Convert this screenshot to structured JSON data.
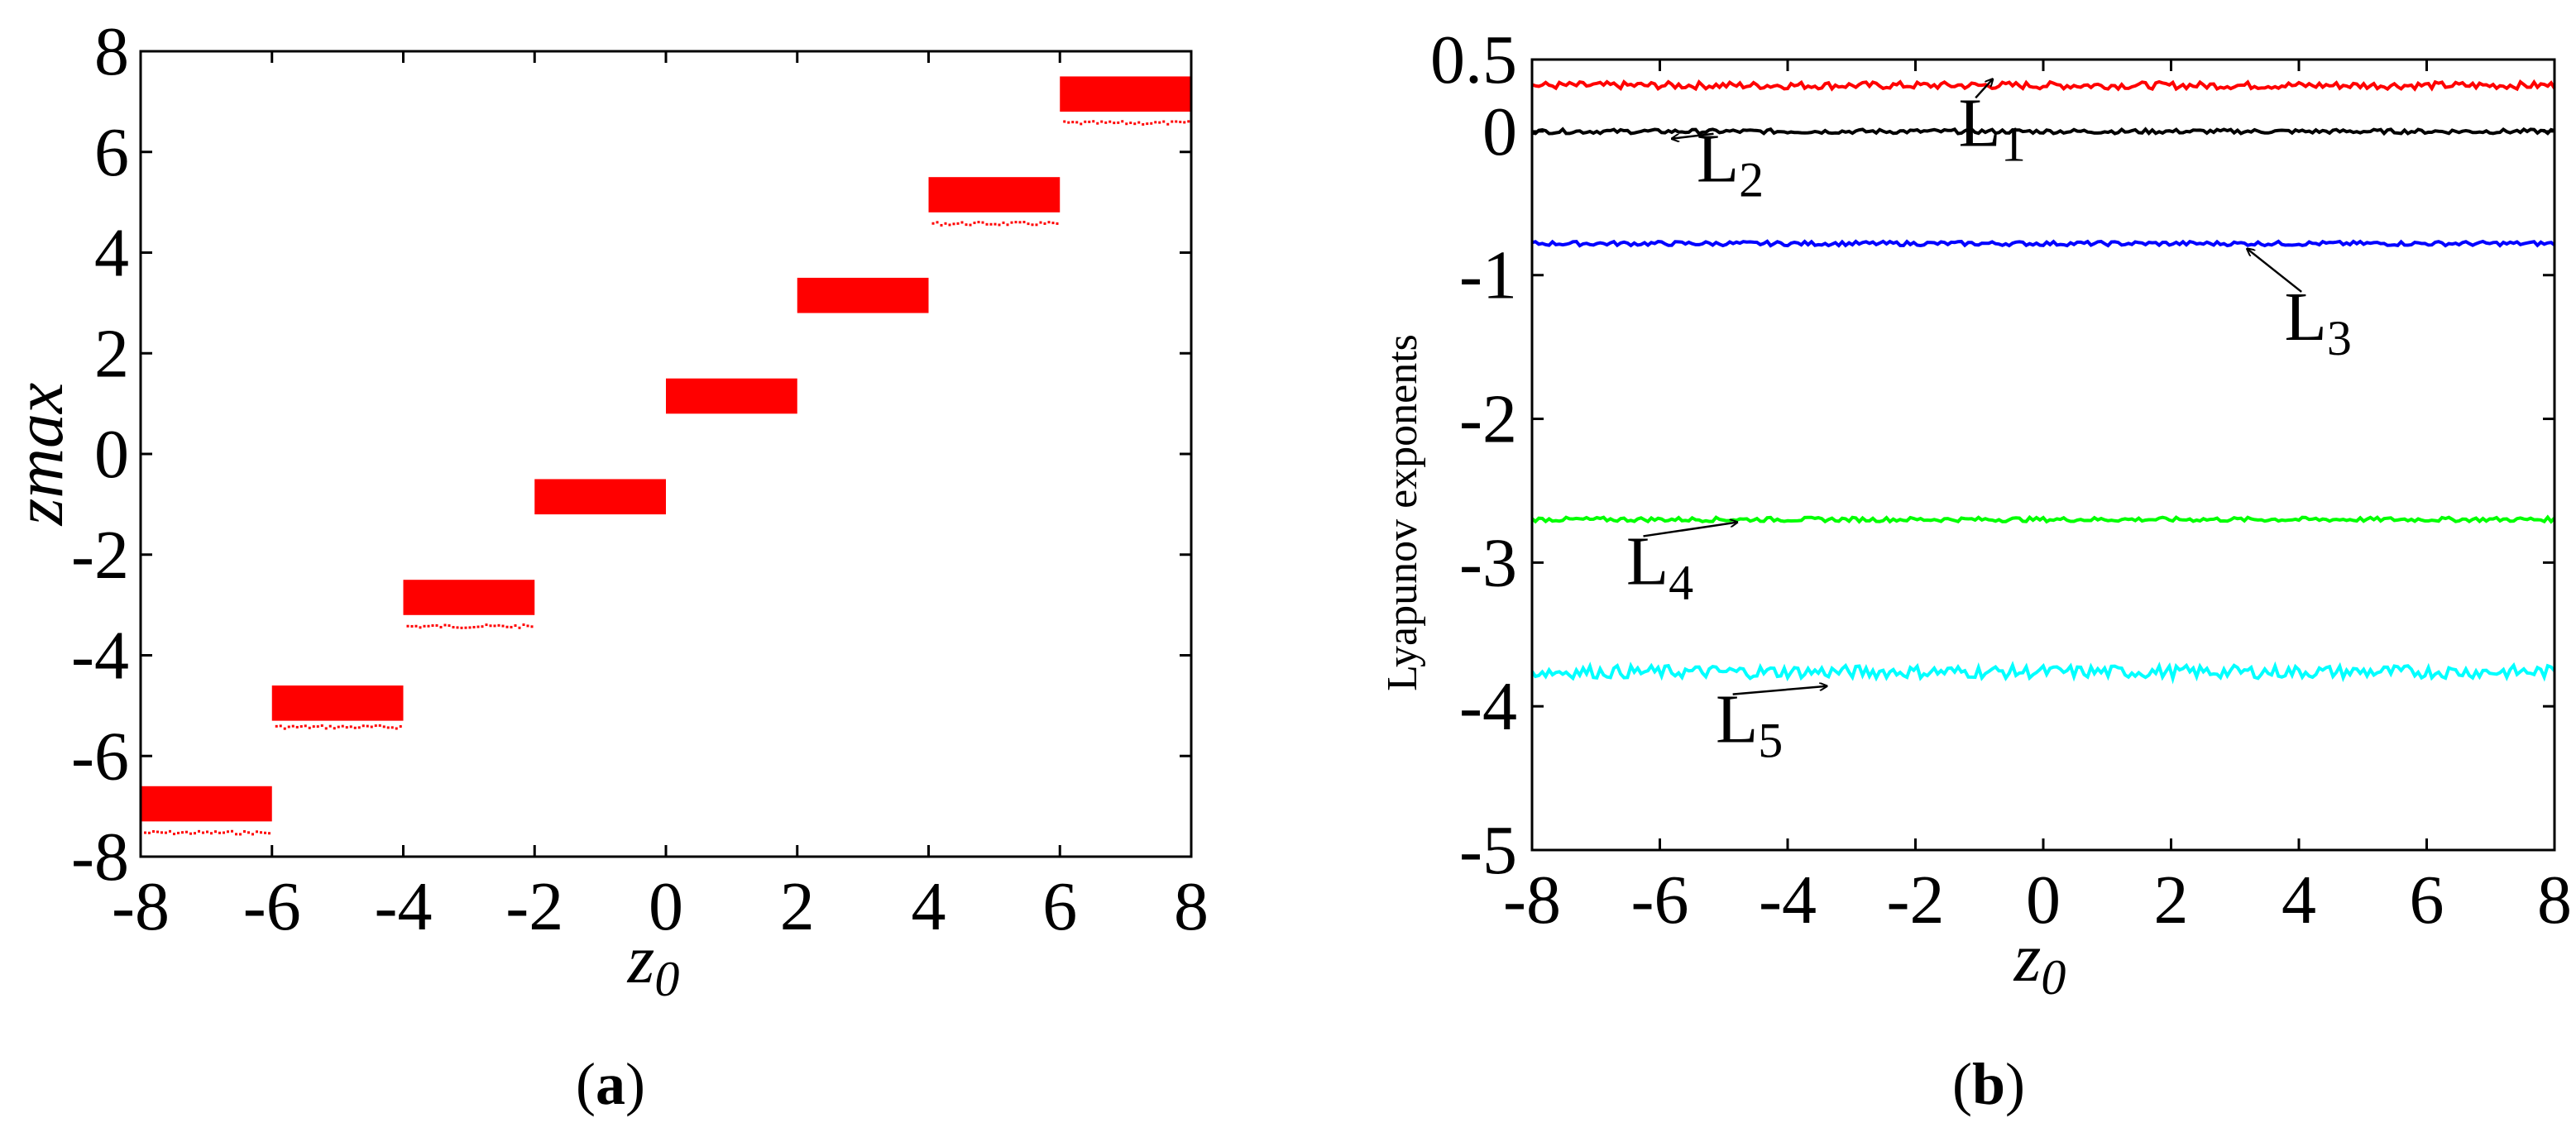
{
  "chart_data": [
    {
      "panel": "a",
      "type": "scatter",
      "caption_letter": "a",
      "xlabel": "z",
      "xlabel_sub": "0",
      "ylabel": "zmax",
      "xlim": [
        -8,
        8
      ],
      "ylim": [
        -8,
        8
      ],
      "xticks": [
        "-8",
        "-6",
        "-4",
        "-2",
        "0",
        "2",
        "4",
        "6",
        "8"
      ],
      "yticks": [
        "-8",
        "-6",
        "-4",
        "-2",
        "0",
        "2",
        "4",
        "6",
        "8"
      ],
      "color": "#ff0000",
      "bands": [
        {
          "x0": -8,
          "x1": -6,
          "ymin": -7.3,
          "ymax": -6.6,
          "dots_y": -7.5
        },
        {
          "x0": -6,
          "x1": -4,
          "ymin": -5.3,
          "ymax": -4.6,
          "dots_y": -5.4
        },
        {
          "x0": -4,
          "x1": -2,
          "ymin": -3.2,
          "ymax": -2.5,
          "dots_y": -3.4
        },
        {
          "x0": -2,
          "x1": 0,
          "ymin": -1.2,
          "ymax": -0.5,
          "dots_y": null
        },
        {
          "x0": 0,
          "x1": 2,
          "ymin": 0.8,
          "ymax": 1.5,
          "dots_y": null
        },
        {
          "x0": 2,
          "x1": 4,
          "ymin": 2.8,
          "ymax": 3.5,
          "dots_y": null
        },
        {
          "x0": 4,
          "x1": 6,
          "ymin": 4.8,
          "ymax": 5.5,
          "dots_y": 4.6
        },
        {
          "x0": 6,
          "x1": 8,
          "ymin": 6.8,
          "ymax": 7.5,
          "dots_y": 6.6
        }
      ]
    },
    {
      "panel": "b",
      "type": "line",
      "caption_letter": "b",
      "xlabel": "z",
      "xlabel_sub": "0",
      "ylabel": "Lyapunov exponents",
      "xlim": [
        -8,
        8
      ],
      "ylim": [
        -5,
        0.5
      ],
      "xticks": [
        "-8",
        "-6",
        "-4",
        "-2",
        "0",
        "2",
        "4",
        "6",
        "8"
      ],
      "yticks": [
        "0.5",
        "0",
        "-1",
        "-2",
        "-3",
        "-4",
        "-5"
      ],
      "series": [
        {
          "name": "L",
          "sub": "1",
          "value": 0.32,
          "amp": 0.025,
          "color": "#ff0000",
          "label_at": [
            -0.8,
            -0.1
          ],
          "arrow_to": [
            -0.8,
            0.36
          ]
        },
        {
          "name": "L",
          "sub": "2",
          "value": 0.0,
          "amp": 0.015,
          "color": "#000000",
          "label_at": [
            -4.9,
            -0.35
          ],
          "arrow_to": [
            -5.8,
            -0.05
          ]
        },
        {
          "name": "L",
          "sub": "3",
          "value": -0.78,
          "amp": 0.015,
          "color": "#0000ff",
          "label_at": [
            4.3,
            -1.45
          ],
          "arrow_to": [
            3.2,
            -0.82
          ]
        },
        {
          "name": "L",
          "sub": "4",
          "value": -2.7,
          "amp": 0.015,
          "color": "#00ff00",
          "label_at": [
            -6.0,
            -3.15
          ],
          "arrow_to": [
            -4.8,
            -2.72
          ]
        },
        {
          "name": "L",
          "sub": "5",
          "value": -3.76,
          "amp": 0.045,
          "color": "#00ffff",
          "label_at": [
            -4.6,
            -4.25
          ],
          "arrow_to": [
            -3.4,
            -3.86
          ]
        }
      ]
    }
  ]
}
